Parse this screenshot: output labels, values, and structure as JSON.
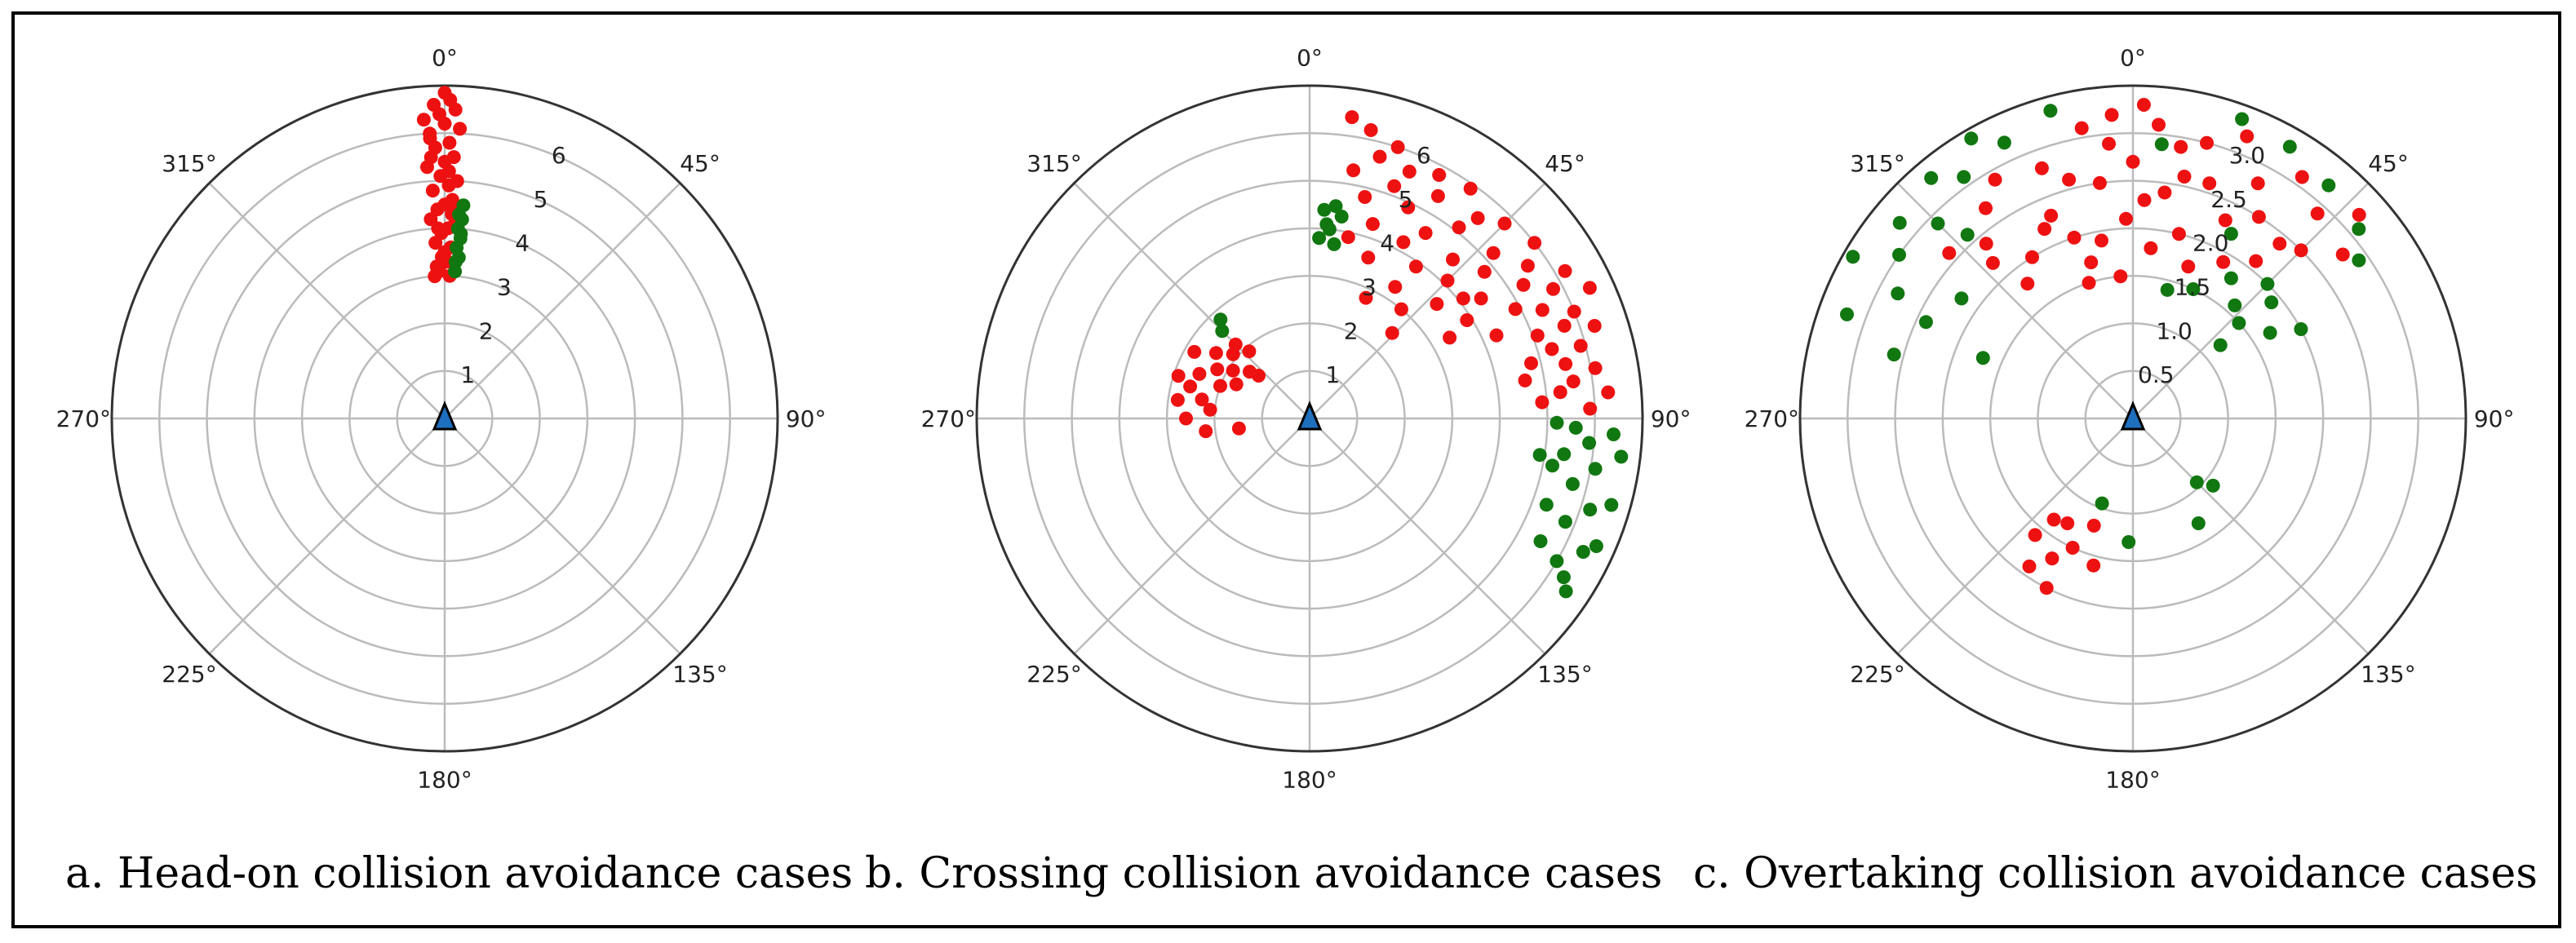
{
  "colors": {
    "red": "#ee1111",
    "green": "#117711",
    "grid": "#bbbbbb",
    "ownship": "#1f6fbf"
  },
  "captions": {
    "a": "a. Head-on collision avoidance cases",
    "b": "b. Crossing collision avoidance cases",
    "c": "c. Overtaking collision avoidance cases"
  },
  "chart_data": [
    {
      "type": "scatter",
      "projection": "polar",
      "title": "a. Head-on collision avoidance cases",
      "theta_labels": [
        "0°",
        "45°",
        "90°",
        "135°",
        "180°",
        "225°",
        "270°",
        "315°"
      ],
      "r_ticks": [
        1,
        2,
        3,
        4,
        5,
        6
      ],
      "r_tick_labels": [
        "1",
        "2",
        "3",
        "4",
        "5",
        "6"
      ],
      "r_max": 7,
      "series": [
        {
          "name": "red",
          "points": [
            [
              -4,
              3.0
            ],
            [
              -3,
              3.2
            ],
            [
              -2,
              3.1
            ],
            [
              1,
              3.3
            ],
            [
              2,
              3.0
            ],
            [
              0,
              3.5
            ],
            [
              -3,
              3.7
            ],
            [
              2,
              3.6
            ],
            [
              -1,
              3.9
            ],
            [
              1,
              4.0
            ],
            [
              -4,
              4.2
            ],
            [
              3,
              4.1
            ],
            [
              -2,
              4.4
            ],
            [
              0,
              4.5
            ],
            [
              2,
              4.6
            ],
            [
              -3,
              4.8
            ],
            [
              1,
              4.9
            ],
            [
              -1,
              5.1
            ],
            [
              3,
              5.0
            ],
            [
              -4,
              5.3
            ],
            [
              0,
              5.4
            ],
            [
              2,
              5.5
            ],
            [
              -2,
              5.7
            ],
            [
              1,
              5.8
            ],
            [
              -3,
              6.0
            ],
            [
              3,
              6.1
            ],
            [
              0,
              6.2
            ],
            [
              -1,
              6.4
            ],
            [
              2,
              6.5
            ],
            [
              -2,
              6.6
            ],
            [
              1,
              6.7
            ],
            [
              -4,
              6.3
            ],
            [
              0,
              6.85
            ],
            [
              -3,
              5.5
            ],
            [
              3,
              4.4
            ],
            [
              -1,
              3.4
            ],
            [
              -2,
              4.0
            ],
            [
              2,
              4.3
            ],
            [
              1,
              5.2
            ],
            [
              -3,
              5.9
            ]
          ]
        },
        {
          "name": "green",
          "points": [
            [
              4,
              3.3
            ],
            [
              5,
              3.4
            ],
            [
              4,
              3.6
            ],
            [
              5,
              3.8
            ],
            [
              4,
              4.0
            ],
            [
              5,
              4.2
            ],
            [
              4,
              4.3
            ],
            [
              5,
              4.5
            ],
            [
              4,
              3.1
            ],
            [
              5,
              3.9
            ]
          ]
        }
      ]
    },
    {
      "type": "scatter",
      "projection": "polar",
      "title": "b. Crossing collision avoidance cases",
      "theta_labels": [
        "0°",
        "45°",
        "90°",
        "135°",
        "180°",
        "225°",
        "270°",
        "315°"
      ],
      "r_ticks": [
        1,
        2,
        3,
        4,
        5,
        6
      ],
      "r_tick_labels": [
        "1",
        "2",
        "3",
        "4",
        "5",
        "6"
      ],
      "r_max": 7,
      "series": [
        {
          "name": "red",
          "points": [
            [
              8,
              6.4
            ],
            [
              12,
              6.2
            ],
            [
              18,
              6.0
            ],
            [
              15,
              5.7
            ],
            [
              22,
              5.6
            ],
            [
              28,
              5.8
            ],
            [
              10,
              5.3
            ],
            [
              20,
              5.2
            ],
            [
              30,
              5.4
            ],
            [
              35,
              5.9
            ],
            [
              25,
              4.9
            ],
            [
              14,
              4.8
            ],
            [
              32,
              4.6
            ],
            [
              40,
              5.5
            ],
            [
              45,
              5.8
            ],
            [
              38,
              5.1
            ],
            [
              48,
              5.2
            ],
            [
              52,
              6.0
            ],
            [
              55,
              5.6
            ],
            [
              42,
              4.5
            ],
            [
              50,
              4.8
            ],
            [
              58,
              5.3
            ],
            [
              60,
              6.2
            ],
            [
              62,
              5.8
            ],
            [
              65,
              5.4
            ],
            [
              68,
              6.0
            ],
            [
              70,
              5.7
            ],
            [
              72,
              6.3
            ],
            [
              75,
              5.9
            ],
            [
              78,
              5.5
            ],
            [
              80,
              6.1
            ],
            [
              82,
              5.6
            ],
            [
              85,
              6.3
            ],
            [
              88,
              5.9
            ],
            [
              28,
              4.2
            ],
            [
              35,
              3.9
            ],
            [
              20,
              3.6
            ],
            [
              45,
              4.1
            ],
            [
              55,
              4.4
            ],
            [
              62,
              4.9
            ],
            [
              70,
              5.1
            ],
            [
              76,
              4.8
            ],
            [
              84,
              5.3
            ],
            [
              33,
              3.3
            ],
            [
              40,
              3.0
            ],
            [
              48,
              3.6
            ],
            [
              58,
              3.9
            ],
            [
              66,
              4.3
            ],
            [
              25,
              2.8
            ],
            [
              44,
              2.5
            ],
            [
              65,
              6.5
            ],
            [
              52,
              4.1
            ],
            [
              18,
              4.3
            ],
            [
              12,
              3.9
            ],
            [
              60,
              3.4
            ],
            [
              80,
              4.6
            ],
            [
              74,
              5.3
            ],
            [
              86,
              4.9
            ],
            [
              292,
              2.5
            ],
            [
              298,
              2.2
            ],
            [
              285,
              2.6
            ],
            [
              300,
              2.8
            ],
            [
              305,
              2.4
            ],
            [
              290,
              2.0
            ],
            [
              310,
              2.1
            ],
            [
              280,
              2.3
            ],
            [
              295,
              1.7
            ],
            [
              315,
              2.2
            ],
            [
              302,
              1.9
            ],
            [
              278,
              2.8
            ],
            [
              308,
              1.6
            ],
            [
              288,
              2.9
            ],
            [
              318,
              1.9
            ],
            [
              275,
              2.1
            ],
            [
              270,
              2.6
            ],
            [
              263,
              2.2
            ],
            [
              262,
              1.5
            ],
            [
              310,
              1.4
            ]
          ]
        },
        {
          "name": "green",
          "points": [
            [
              4,
              4.4
            ],
            [
              5,
              4.1
            ],
            [
              7,
              4.5
            ],
            [
              6,
              4.0
            ],
            [
              9,
              4.3
            ],
            [
              3,
              3.8
            ],
            [
              8,
              3.7
            ],
            [
              92,
              5.6
            ],
            [
              95,
              5.9
            ],
            [
              98,
              5.4
            ],
            [
              100,
              6.1
            ],
            [
              104,
              5.7
            ],
            [
              108,
              6.2
            ],
            [
              112,
              5.8
            ],
            [
              116,
              6.4
            ],
            [
              120,
              6.0
            ],
            [
              124,
              6.5
            ],
            [
              110,
              5.3
            ],
            [
              118,
              5.5
            ],
            [
              93,
              6.4
            ],
            [
              97,
              6.6
            ],
            [
              106,
              6.6
            ],
            [
              114,
              6.6
            ],
            [
              122,
              6.3
            ],
            [
              101,
              5.2
            ],
            [
              91,
              5.2
            ],
            [
              99,
              4.9
            ],
            [
              315,
              2.6
            ],
            [
              318,
              2.8
            ]
          ]
        }
      ]
    },
    {
      "type": "scatter",
      "projection": "polar",
      "title": "c. Overtaking collision avoidance cases",
      "theta_labels": [
        "0°",
        "45°",
        "90°",
        "135°",
        "180°",
        "225°",
        "270°",
        "315°"
      ],
      "r_ticks": [
        0.5,
        1.0,
        1.5,
        2.0,
        2.5,
        3.0
      ],
      "r_tick_labels": [
        "0.5",
        "1.0",
        "1.5",
        "2.0",
        "2.5",
        "3.0"
      ],
      "r_max": 3.5,
      "series": [
        {
          "name": "red",
          "points": [
            [
              350,
              3.1
            ],
            [
              356,
              3.2
            ],
            [
              5,
              3.1
            ],
            [
              10,
              2.9
            ],
            [
              15,
              3.0
            ],
            [
              22,
              3.2
            ],
            [
              28,
              2.8
            ],
            [
              35,
              3.1
            ],
            [
              42,
              2.9
            ],
            [
              48,
              3.2
            ],
            [
              340,
              2.8
            ],
            [
              345,
              2.6
            ],
            [
              352,
              2.5
            ],
            [
              0,
              2.7
            ],
            [
              8,
              2.4
            ],
            [
              18,
              2.6
            ],
            [
              25,
              2.3
            ],
            [
              32,
              2.5
            ],
            [
              40,
              2.4
            ],
            [
              330,
              2.9
            ],
            [
              325,
              2.7
            ],
            [
              320,
              2.4
            ],
            [
              335,
              2.2
            ],
            [
              342,
              2.0
            ],
            [
              350,
              1.9
            ],
            [
              358,
              2.1
            ],
            [
              6,
              1.8
            ],
            [
              14,
              2.0
            ],
            [
              20,
              1.7
            ],
            [
              338,
              2.3
            ],
            [
              328,
              2.0
            ],
            [
              318,
              2.2
            ],
            [
              312,
              2.6
            ],
            [
              322,
              1.8
            ],
            [
              345,
              1.7
            ],
            [
              355,
              1.5
            ],
            [
              3,
              2.3
            ],
            [
              12,
              2.6
            ],
            [
              38,
              2.1
            ],
            [
              45,
              2.5
            ],
            [
              52,
              2.8
            ],
            [
              30,
              1.9
            ],
            [
              355,
              2.9
            ],
            [
              2,
              3.3
            ],
            [
              -18,
              1.5
            ],
            [
              205,
              1.5
            ],
            [
              210,
              1.7
            ],
            [
              215,
              1.9
            ],
            [
              220,
              1.6
            ],
            [
              212,
              1.3
            ],
            [
              200,
              1.2
            ],
            [
              195,
              1.6
            ],
            [
              218,
              1.35
            ],
            [
              207,
              2.0
            ]
          ]
        },
        {
          "name": "green",
          "points": [
            [
              300,
              3.4
            ],
            [
              305,
              3.0
            ],
            [
              310,
              3.2
            ],
            [
              315,
              2.9
            ],
            [
              320,
              3.3
            ],
            [
              325,
              3.1
            ],
            [
              330,
              3.4
            ],
            [
              335,
              3.2
            ],
            [
              345,
              3.35
            ],
            [
              20,
              3.35
            ],
            [
              30,
              3.3
            ],
            [
              40,
              3.2
            ],
            [
              50,
              3.1
            ],
            [
              55,
              2.9
            ],
            [
              28,
              2.2
            ],
            [
              35,
              1.8
            ],
            [
              42,
              1.6
            ],
            [
              48,
              1.5
            ],
            [
              50,
              1.9
            ],
            [
              58,
              1.7
            ],
            [
              62,
              2.0
            ],
            [
              45,
              2.0
            ],
            [
              25,
              1.5
            ],
            [
              15,
              1.4
            ],
            [
              295,
              2.4
            ],
            [
              305,
              2.2
            ],
            [
              285,
              2.6
            ],
            [
              290,
              3.2
            ],
            [
              298,
              2.8
            ],
            [
              318,
              2.6
            ],
            [
              6,
              2.9
            ],
            [
              50,
              1.2
            ],
            [
              130,
              1.1
            ],
            [
              135,
              0.95
            ],
            [
              148,
              1.3
            ],
            [
              182,
              1.3
            ],
            [
              200,
              0.95
            ],
            [
              292,
              1.7
            ]
          ]
        }
      ]
    }
  ]
}
